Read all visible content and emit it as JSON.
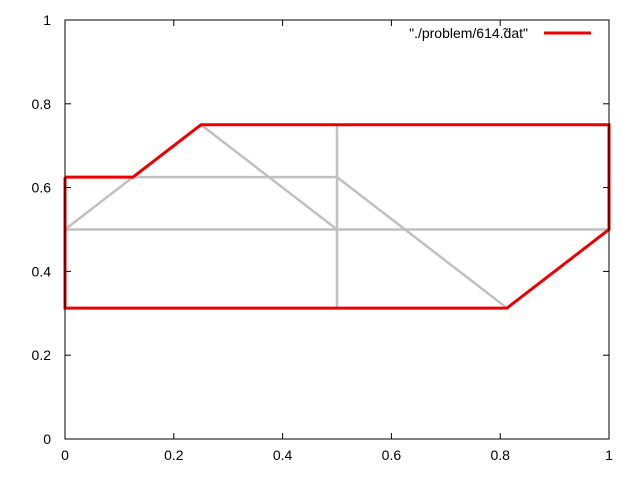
{
  "chart_data": {
    "type": "line",
    "xlim": [
      0,
      1
    ],
    "ylim": [
      0,
      1
    ],
    "grid": false,
    "legend_position": "top-right",
    "x_ticks": [
      "0",
      "0.2",
      "0.4",
      "0.6",
      "0.8",
      "1"
    ],
    "y_ticks": [
      "0",
      "0.2",
      "0.4",
      "0.6",
      "0.8",
      "1"
    ],
    "x_tick_values": [
      0,
      0.2,
      0.4,
      0.6,
      0.8,
      1
    ],
    "y_tick_values": [
      0,
      0.2,
      0.4,
      0.6,
      0.8,
      1
    ],
    "colors": {
      "boundary": "#ee0000",
      "mesh": "#c0c0c0",
      "frame": "#000000"
    },
    "mesh_segments": [
      [
        [
          0,
          0.5
        ],
        [
          1,
          0.5
        ]
      ],
      [
        [
          0.125,
          0.625
        ],
        [
          0.5,
          0.625
        ]
      ],
      [
        [
          0.5,
          0.3125
        ],
        [
          0.5,
          0.75
        ]
      ],
      [
        [
          0,
          0.5
        ],
        [
          0.25,
          0.75
        ]
      ],
      [
        [
          0.25,
          0.75
        ],
        [
          0.5,
          0.5
        ]
      ],
      [
        [
          0.5,
          0.625
        ],
        [
          0.8125,
          0.3125
        ]
      ]
    ],
    "series": [
      {
        "name": "\"./problem/614.0.dat\"",
        "legend_label": "\"./problem/614.̃dat\"",
        "x": [
          0,
          0.125,
          0.25,
          1,
          1,
          0.8125,
          0,
          0
        ],
        "y": [
          0.625,
          0.625,
          0.75,
          0.75,
          0.5,
          0.3125,
          0.3125,
          0.625
        ]
      }
    ]
  }
}
